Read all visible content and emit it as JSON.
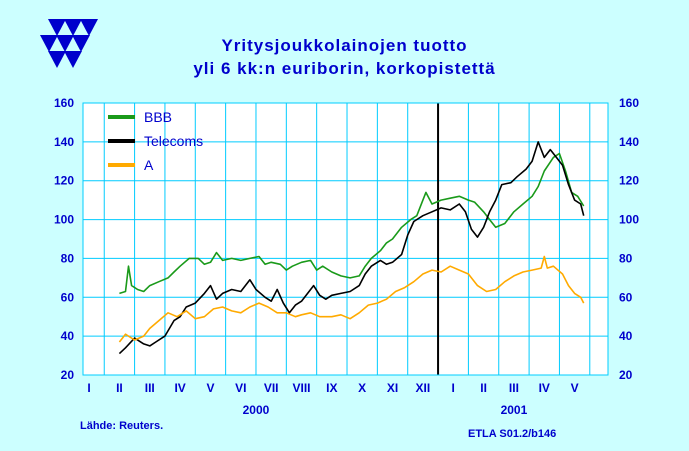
{
  "chart_data": {
    "type": "line",
    "title": "Yritysjoukkolainojen tuotto",
    "subtitle": "yli 6 kk:n euriborin, korkopistettä",
    "source": "Lähde: Reuters.",
    "code": "ETLA S01.2/b146",
    "ylim": [
      20,
      160
    ],
    "yticks": [
      "160",
      "140",
      "120",
      "100",
      "80",
      "60",
      "40",
      "20"
    ],
    "months": [
      "I",
      "II",
      "III",
      "IV",
      "V",
      "VI",
      "VII",
      "VIII",
      "IX",
      "X",
      "XI",
      "XII",
      "I",
      "II",
      "III",
      "IV",
      "V"
    ],
    "years": [
      "2000",
      "2001"
    ],
    "legend_position": "top-left",
    "colors": {
      "background": "#ccffff",
      "plot_bg": "#ffffff",
      "grid": "#00ccff",
      "axis_text": "#0000cc"
    },
    "series": [
      {
        "name": "BBB",
        "color": "#1a9a1a",
        "points": [
          [
            2.0,
            62
          ],
          [
            2.2,
            63
          ],
          [
            2.3,
            76
          ],
          [
            2.4,
            66
          ],
          [
            2.6,
            64
          ],
          [
            2.8,
            63
          ],
          [
            3.0,
            66
          ],
          [
            3.3,
            68
          ],
          [
            3.6,
            70
          ],
          [
            3.8,
            73
          ],
          [
            4.0,
            76
          ],
          [
            4.3,
            80
          ],
          [
            4.6,
            80
          ],
          [
            4.8,
            77
          ],
          [
            5.0,
            78
          ],
          [
            5.2,
            83
          ],
          [
            5.4,
            79
          ],
          [
            5.7,
            80
          ],
          [
            6.0,
            79
          ],
          [
            6.3,
            80
          ],
          [
            6.6,
            81
          ],
          [
            6.8,
            77
          ],
          [
            7.0,
            78
          ],
          [
            7.3,
            77
          ],
          [
            7.5,
            74
          ],
          [
            7.7,
            76
          ],
          [
            8.0,
            78
          ],
          [
            8.3,
            79
          ],
          [
            8.5,
            74
          ],
          [
            8.7,
            76
          ],
          [
            9.0,
            73
          ],
          [
            9.3,
            71
          ],
          [
            9.6,
            70
          ],
          [
            9.9,
            71
          ],
          [
            10.1,
            76
          ],
          [
            10.3,
            80
          ],
          [
            10.6,
            84
          ],
          [
            10.8,
            88
          ],
          [
            11.0,
            90
          ],
          [
            11.3,
            96
          ],
          [
            11.6,
            100
          ],
          [
            11.8,
            102
          ],
          [
            12.0,
            110
          ],
          [
            12.1,
            114
          ],
          [
            12.3,
            108
          ],
          [
            12.6,
            110
          ],
          [
            12.9,
            111
          ],
          [
            13.2,
            112
          ],
          [
            13.5,
            110
          ],
          [
            13.7,
            109
          ],
          [
            14.0,
            104
          ],
          [
            14.2,
            100
          ],
          [
            14.4,
            96
          ],
          [
            14.7,
            98
          ],
          [
            15.0,
            104
          ],
          [
            15.3,
            108
          ],
          [
            15.6,
            112
          ],
          [
            15.8,
            117
          ],
          [
            16.0,
            125
          ],
          [
            16.3,
            132
          ],
          [
            16.5,
            134
          ],
          [
            16.7,
            125
          ],
          [
            16.9,
            114
          ],
          [
            17.1,
            112
          ],
          [
            17.3,
            107
          ]
        ]
      },
      {
        "name": "Telecoms",
        "color": "#000000",
        "points": [
          [
            2.0,
            31
          ],
          [
            2.2,
            34
          ],
          [
            2.5,
            39
          ],
          [
            2.8,
            36
          ],
          [
            3.0,
            35
          ],
          [
            3.2,
            37
          ],
          [
            3.5,
            40
          ],
          [
            3.8,
            48
          ],
          [
            4.0,
            50
          ],
          [
            4.2,
            55
          ],
          [
            4.5,
            57
          ],
          [
            4.8,
            62
          ],
          [
            5.0,
            66
          ],
          [
            5.2,
            59
          ],
          [
            5.4,
            62
          ],
          [
            5.7,
            64
          ],
          [
            6.0,
            63
          ],
          [
            6.3,
            69
          ],
          [
            6.5,
            64
          ],
          [
            6.8,
            60
          ],
          [
            7.0,
            58
          ],
          [
            7.2,
            64
          ],
          [
            7.4,
            57
          ],
          [
            7.6,
            52
          ],
          [
            7.8,
            56
          ],
          [
            8.0,
            58
          ],
          [
            8.2,
            62
          ],
          [
            8.4,
            66
          ],
          [
            8.6,
            61
          ],
          [
            8.8,
            59
          ],
          [
            9.0,
            61
          ],
          [
            9.3,
            62
          ],
          [
            9.6,
            63
          ],
          [
            9.9,
            66
          ],
          [
            10.1,
            72
          ],
          [
            10.3,
            76
          ],
          [
            10.6,
            79
          ],
          [
            10.8,
            77
          ],
          [
            11.0,
            78
          ],
          [
            11.3,
            82
          ],
          [
            11.5,
            92
          ],
          [
            11.7,
            99
          ],
          [
            12.0,
            102
          ],
          [
            12.3,
            104
          ],
          [
            12.6,
            106
          ],
          [
            12.9,
            105
          ],
          [
            13.2,
            108
          ],
          [
            13.4,
            104
          ],
          [
            13.6,
            95
          ],
          [
            13.8,
            91
          ],
          [
            14.0,
            96
          ],
          [
            14.2,
            104
          ],
          [
            14.4,
            110
          ],
          [
            14.6,
            118
          ],
          [
            14.9,
            119
          ],
          [
            15.1,
            122
          ],
          [
            15.4,
            126
          ],
          [
            15.6,
            130
          ],
          [
            15.8,
            140
          ],
          [
            16.0,
            132
          ],
          [
            16.2,
            136
          ],
          [
            16.4,
            132
          ],
          [
            16.6,
            128
          ],
          [
            16.8,
            118
          ],
          [
            17.0,
            110
          ],
          [
            17.2,
            108
          ],
          [
            17.3,
            102
          ]
        ]
      },
      {
        "name": "A",
        "color": "#ffaa00",
        "points": [
          [
            2.0,
            37
          ],
          [
            2.2,
            41
          ],
          [
            2.5,
            38
          ],
          [
            2.8,
            40
          ],
          [
            3.0,
            44
          ],
          [
            3.3,
            48
          ],
          [
            3.6,
            52
          ],
          [
            3.9,
            50
          ],
          [
            4.2,
            53
          ],
          [
            4.5,
            49
          ],
          [
            4.8,
            50
          ],
          [
            5.1,
            54
          ],
          [
            5.4,
            55
          ],
          [
            5.7,
            53
          ],
          [
            6.0,
            52
          ],
          [
            6.3,
            55
          ],
          [
            6.6,
            57
          ],
          [
            6.9,
            55
          ],
          [
            7.2,
            52
          ],
          [
            7.5,
            52
          ],
          [
            7.8,
            50
          ],
          [
            8.0,
            51
          ],
          [
            8.3,
            52
          ],
          [
            8.6,
            50
          ],
          [
            9.0,
            50
          ],
          [
            9.3,
            51
          ],
          [
            9.6,
            49
          ],
          [
            9.9,
            52
          ],
          [
            10.2,
            56
          ],
          [
            10.5,
            57
          ],
          [
            10.8,
            59
          ],
          [
            11.1,
            63
          ],
          [
            11.4,
            65
          ],
          [
            11.7,
            68
          ],
          [
            12.0,
            72
          ],
          [
            12.3,
            74
          ],
          [
            12.6,
            73
          ],
          [
            12.9,
            76
          ],
          [
            13.2,
            74
          ],
          [
            13.5,
            72
          ],
          [
            13.8,
            66
          ],
          [
            14.1,
            63
          ],
          [
            14.4,
            64
          ],
          [
            14.7,
            68
          ],
          [
            15.0,
            71
          ],
          [
            15.3,
            73
          ],
          [
            15.6,
            74
          ],
          [
            15.9,
            75
          ],
          [
            16.0,
            81
          ],
          [
            16.1,
            75
          ],
          [
            16.3,
            76
          ],
          [
            16.6,
            72
          ],
          [
            16.8,
            66
          ],
          [
            17.0,
            62
          ],
          [
            17.2,
            60
          ],
          [
            17.3,
            57
          ]
        ]
      }
    ]
  }
}
